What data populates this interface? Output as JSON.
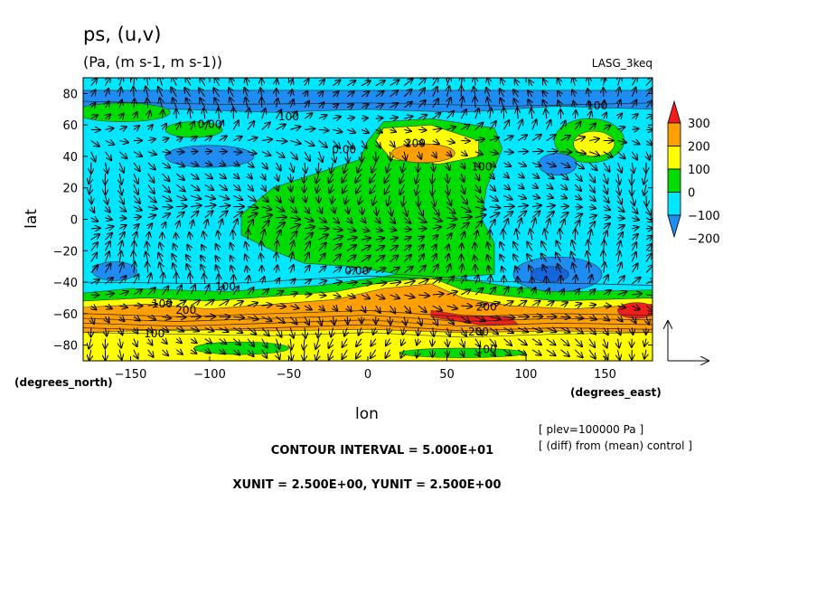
{
  "chart_data": {
    "type": "heatmap",
    "title": "ps, (u,v)",
    "subtitle": "(Pa, (m s-1, m s-1))",
    "model_label": "LASG_3keq",
    "xlabel": "lon",
    "ylabel": "lat",
    "x_unit_label": "(degrees_east)",
    "y_unit_label": "(degrees_north)",
    "xlim": [
      -180,
      180
    ],
    "ylim": [
      -90,
      90
    ],
    "x_ticks": [
      -150,
      -100,
      -50,
      0,
      50,
      100,
      150
    ],
    "y_ticks": [
      -80,
      -60,
      -40,
      -20,
      0,
      20,
      40,
      60,
      80
    ],
    "x_tick_labels": [
      "−150",
      "−100",
      "−50",
      "0",
      "50",
      "100",
      "150"
    ],
    "y_tick_labels": [
      "−80",
      "−60",
      "−40",
      "−20",
      "0",
      "20",
      "40",
      "60",
      "80"
    ],
    "colorbar": {
      "levels": [
        -200,
        -100,
        0,
        100,
        200,
        300
      ],
      "level_labels": [
        "−200",
        "−100",
        "0",
        "100",
        "200",
        "300"
      ],
      "colors": [
        "#1e8cf0",
        "#00e6ff",
        "#00dc00",
        "#ffff00",
        "#ffa000",
        "#f01e1e"
      ],
      "extend": "both"
    },
    "contour_labels": [
      {
        "text": "100",
        "lon": -50,
        "lat": 63
      },
      {
        "text": "0.00",
        "lon": -100,
        "lat": 58
      },
      {
        "text": "100",
        "lon": 145,
        "lat": 70
      },
      {
        "text": "0.00",
        "lon": -15,
        "lat": 42
      },
      {
        "text": "200",
        "lon": 30,
        "lat": 46
      },
      {
        "text": "100",
        "lon": 72,
        "lat": 31
      },
      {
        "text": "0.00",
        "lon": -7,
        "lat": -35
      },
      {
        "text": "100",
        "lon": -90,
        "lat": -45
      },
      {
        "text": "100",
        "lon": -130,
        "lat": -56
      },
      {
        "text": "200",
        "lon": -115,
        "lat": -60
      },
      {
        "text": "200",
        "lon": 75,
        "lat": -58
      },
      {
        "text": "200",
        "lon": 70,
        "lat": -74
      },
      {
        "text": "100",
        "lon": -135,
        "lat": -75
      },
      {
        "text": "100",
        "lon": 75,
        "lat": -85
      }
    ],
    "reference_vector": {
      "xunit": 2.5,
      "yunit": 2.5
    },
    "grid": false,
    "legend_position": "right"
  },
  "info": {
    "plev": "[ plev=100000 Pa ]",
    "diff_note": "[ (diff) from (mean) control ]",
    "contour_interval": "CONTOUR INTERVAL = 5.000E+01",
    "vector_units": "XUNIT = 2.500E+00, YUNIT = 2.500E+00"
  }
}
